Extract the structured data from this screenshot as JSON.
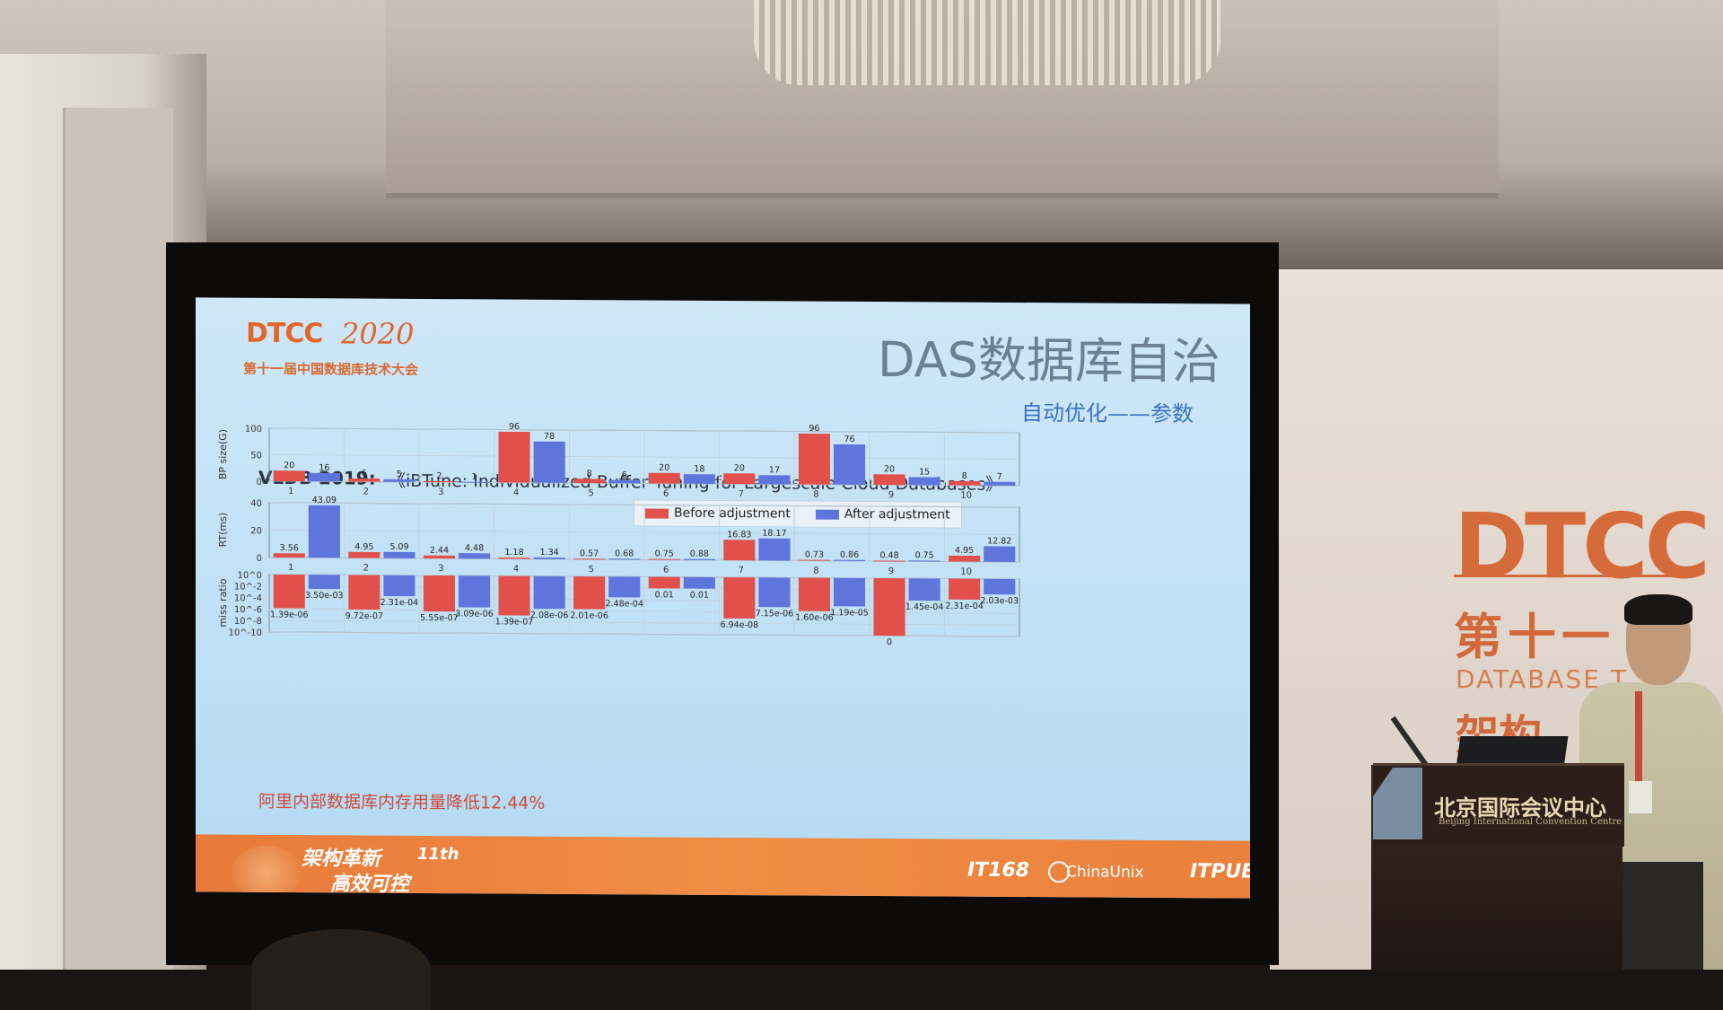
{
  "slide": {
    "logo_dtcc": "DTCC",
    "logo_year": "2020",
    "logo_cn": "第十一届中国数据库技术大会",
    "title": "DAS数据库自治",
    "subtitle": "自动优化——参数",
    "ref_venue": "VLDB 2019:",
    "ref_title": "《iBTune: Individualized Buffer Tuning for Largescale Cloud Databases》",
    "footnote": "阿里内部数据库内存用量降低12.44%",
    "footer_slogan_1": "架构革新",
    "footer_slogan_2": "高效可控",
    "footer_11": "11th",
    "sponsors": [
      "IT168",
      "ChinaUnix",
      "ITPUB"
    ]
  },
  "backdrop": {
    "logo": "DTCC",
    "cn": "第十一",
    "en": "DATABASE T",
    "cn2": "架构"
  },
  "podium": {
    "name": "北京国际会议中心",
    "sub": "Beijing International Convention Centre"
  },
  "colors": {
    "before": "#e2504c",
    "after": "#5f75dc",
    "footer": "#f08d45"
  },
  "chart_data": [
    {
      "type": "bar",
      "legend": [
        "Before adjustment",
        "After adjustment"
      ],
      "ylabel": "BP size(G)",
      "ylim": [
        0,
        100
      ],
      "yticks": [
        "100",
        "50",
        "0"
      ],
      "categories": [
        "1",
        "2",
        "3",
        "4",
        "5",
        "6",
        "7",
        "8",
        "9",
        "10"
      ],
      "series": [
        {
          "name": "Before adjustment",
          "values": [
            20,
            6,
            2,
            96,
            8,
            20,
            20,
            96,
            20,
            8
          ]
        },
        {
          "name": "After adjustment",
          "values": [
            16,
            5,
            1,
            78,
            6,
            18,
            17,
            76,
            15,
            7
          ]
        }
      ]
    },
    {
      "type": "bar",
      "ylabel": "RT(ms)",
      "ylim": [
        0,
        45
      ],
      "yticks": [
        "40",
        "20",
        "0"
      ],
      "categories": [
        "1",
        "2",
        "3",
        "4",
        "5",
        "6",
        "7",
        "8",
        "9",
        "10"
      ],
      "series": [
        {
          "name": "Before adjustment",
          "values": [
            3.56,
            4.95,
            2.44,
            1.18,
            0.57,
            0.75,
            16.83,
            0.73,
            0.48,
            4.95
          ]
        },
        {
          "name": "After adjustment",
          "values": [
            43.09,
            5.09,
            4.48,
            1.34,
            0.68,
            0.88,
            18.17,
            0.86,
            0.75,
            12.82
          ]
        }
      ]
    },
    {
      "type": "bar",
      "ylabel": "miss ratio",
      "yticks": [
        "10^0",
        "10^-2",
        "10^-4",
        "10^-6",
        "10^-8",
        "10^-10"
      ],
      "categories": [
        "1",
        "2",
        "3",
        "4",
        "5",
        "6",
        "7",
        "8",
        "9",
        "10"
      ],
      "series": [
        {
          "name": "Before adjustment",
          "labels": [
            "1.39e-06",
            "9.72e-07",
            "5.55e-07",
            "1.39e-07",
            "2.01e-06",
            "0.01",
            "6.94e-08",
            "1.60e-06",
            "0",
            "2.31e-04"
          ],
          "values": [
            1.39e-06,
            9.72e-07,
            5.55e-07,
            1.39e-07,
            2.01e-06,
            0.01,
            6.94e-08,
            1.6e-06,
            0,
            0.000231
          ]
        },
        {
          "name": "After adjustment",
          "labels": [
            "3.50e-03",
            "2.31e-04",
            "3.09e-06",
            "2.08e-06",
            "2.48e-04",
            "0.01",
            "7.15e-06",
            "1.19e-05",
            "1.45e-04",
            "2.03e-03"
          ],
          "values": [
            0.0035,
            0.000231,
            3.09e-06,
            2.08e-06,
            0.000248,
            0.01,
            7.15e-06,
            1.19e-05,
            0.000145,
            0.00203
          ]
        }
      ]
    }
  ]
}
